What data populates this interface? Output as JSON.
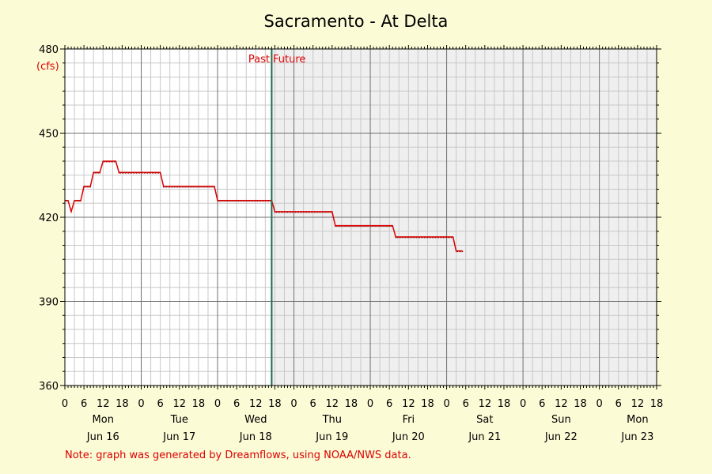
{
  "chart_data": {
    "type": "line",
    "title": "Sacramento - At Delta",
    "unit_label": "(cfs)",
    "ylim": [
      360,
      480
    ],
    "y_ticks": [
      360,
      390,
      420,
      450,
      480
    ],
    "x_range_hours": [
      0,
      186
    ],
    "x_hour_ticks": [
      "0",
      "6",
      "12",
      "18",
      "0",
      "6",
      "12",
      "18",
      "0",
      "6",
      "12",
      "18",
      "0",
      "6",
      "12",
      "18",
      "0",
      "6",
      "12",
      "18",
      "0",
      "6",
      "12",
      "18",
      "0",
      "6",
      "12",
      "18",
      "0",
      "6",
      "12",
      "18"
    ],
    "days": [
      {
        "weekday": "Mon",
        "date": "Jun 16"
      },
      {
        "weekday": "Tue",
        "date": "Jun 17"
      },
      {
        "weekday": "Wed",
        "date": "Jun 18"
      },
      {
        "weekday": "Thu",
        "date": "Jun 19"
      },
      {
        "weekday": "Fri",
        "date": "Jun 20"
      },
      {
        "weekday": "Sat",
        "date": "Jun 21"
      },
      {
        "weekday": "Sun",
        "date": "Jun 22"
      },
      {
        "weekday": "Mon",
        "date": "Jun 23"
      }
    ],
    "now_hour": 65,
    "past_label": "Past",
    "future_label": "Future",
    "note": "Note: graph was generated by Dreamflows, using NOAA/NWS data.",
    "grid": true,
    "colors": {
      "background": "#fbfbd6",
      "plot_past": "#ffffff",
      "plot_future": "#efefef",
      "series": "#dd0000",
      "now_line": "#1f6b4a",
      "grid_minor": "#c8c8c8",
      "grid_major": "#707070",
      "label_red": "#dd0000"
    },
    "series": [
      {
        "points": [
          [
            0,
            426
          ],
          [
            1,
            426
          ],
          [
            2,
            422
          ],
          [
            3,
            426
          ],
          [
            5,
            426
          ],
          [
            6,
            431
          ],
          [
            8,
            431
          ],
          [
            9,
            436
          ],
          [
            11,
            436
          ],
          [
            12,
            440
          ],
          [
            16,
            440
          ],
          [
            17,
            436
          ],
          [
            30,
            436
          ],
          [
            31,
            431
          ],
          [
            47,
            431
          ],
          [
            48,
            426
          ],
          [
            65,
            426
          ],
          [
            66,
            422
          ],
          [
            84,
            422
          ],
          [
            85,
            417
          ],
          [
            103,
            417
          ],
          [
            104,
            413
          ],
          [
            122,
            413
          ],
          [
            123,
            408
          ],
          [
            125,
            408
          ]
        ]
      }
    ]
  }
}
